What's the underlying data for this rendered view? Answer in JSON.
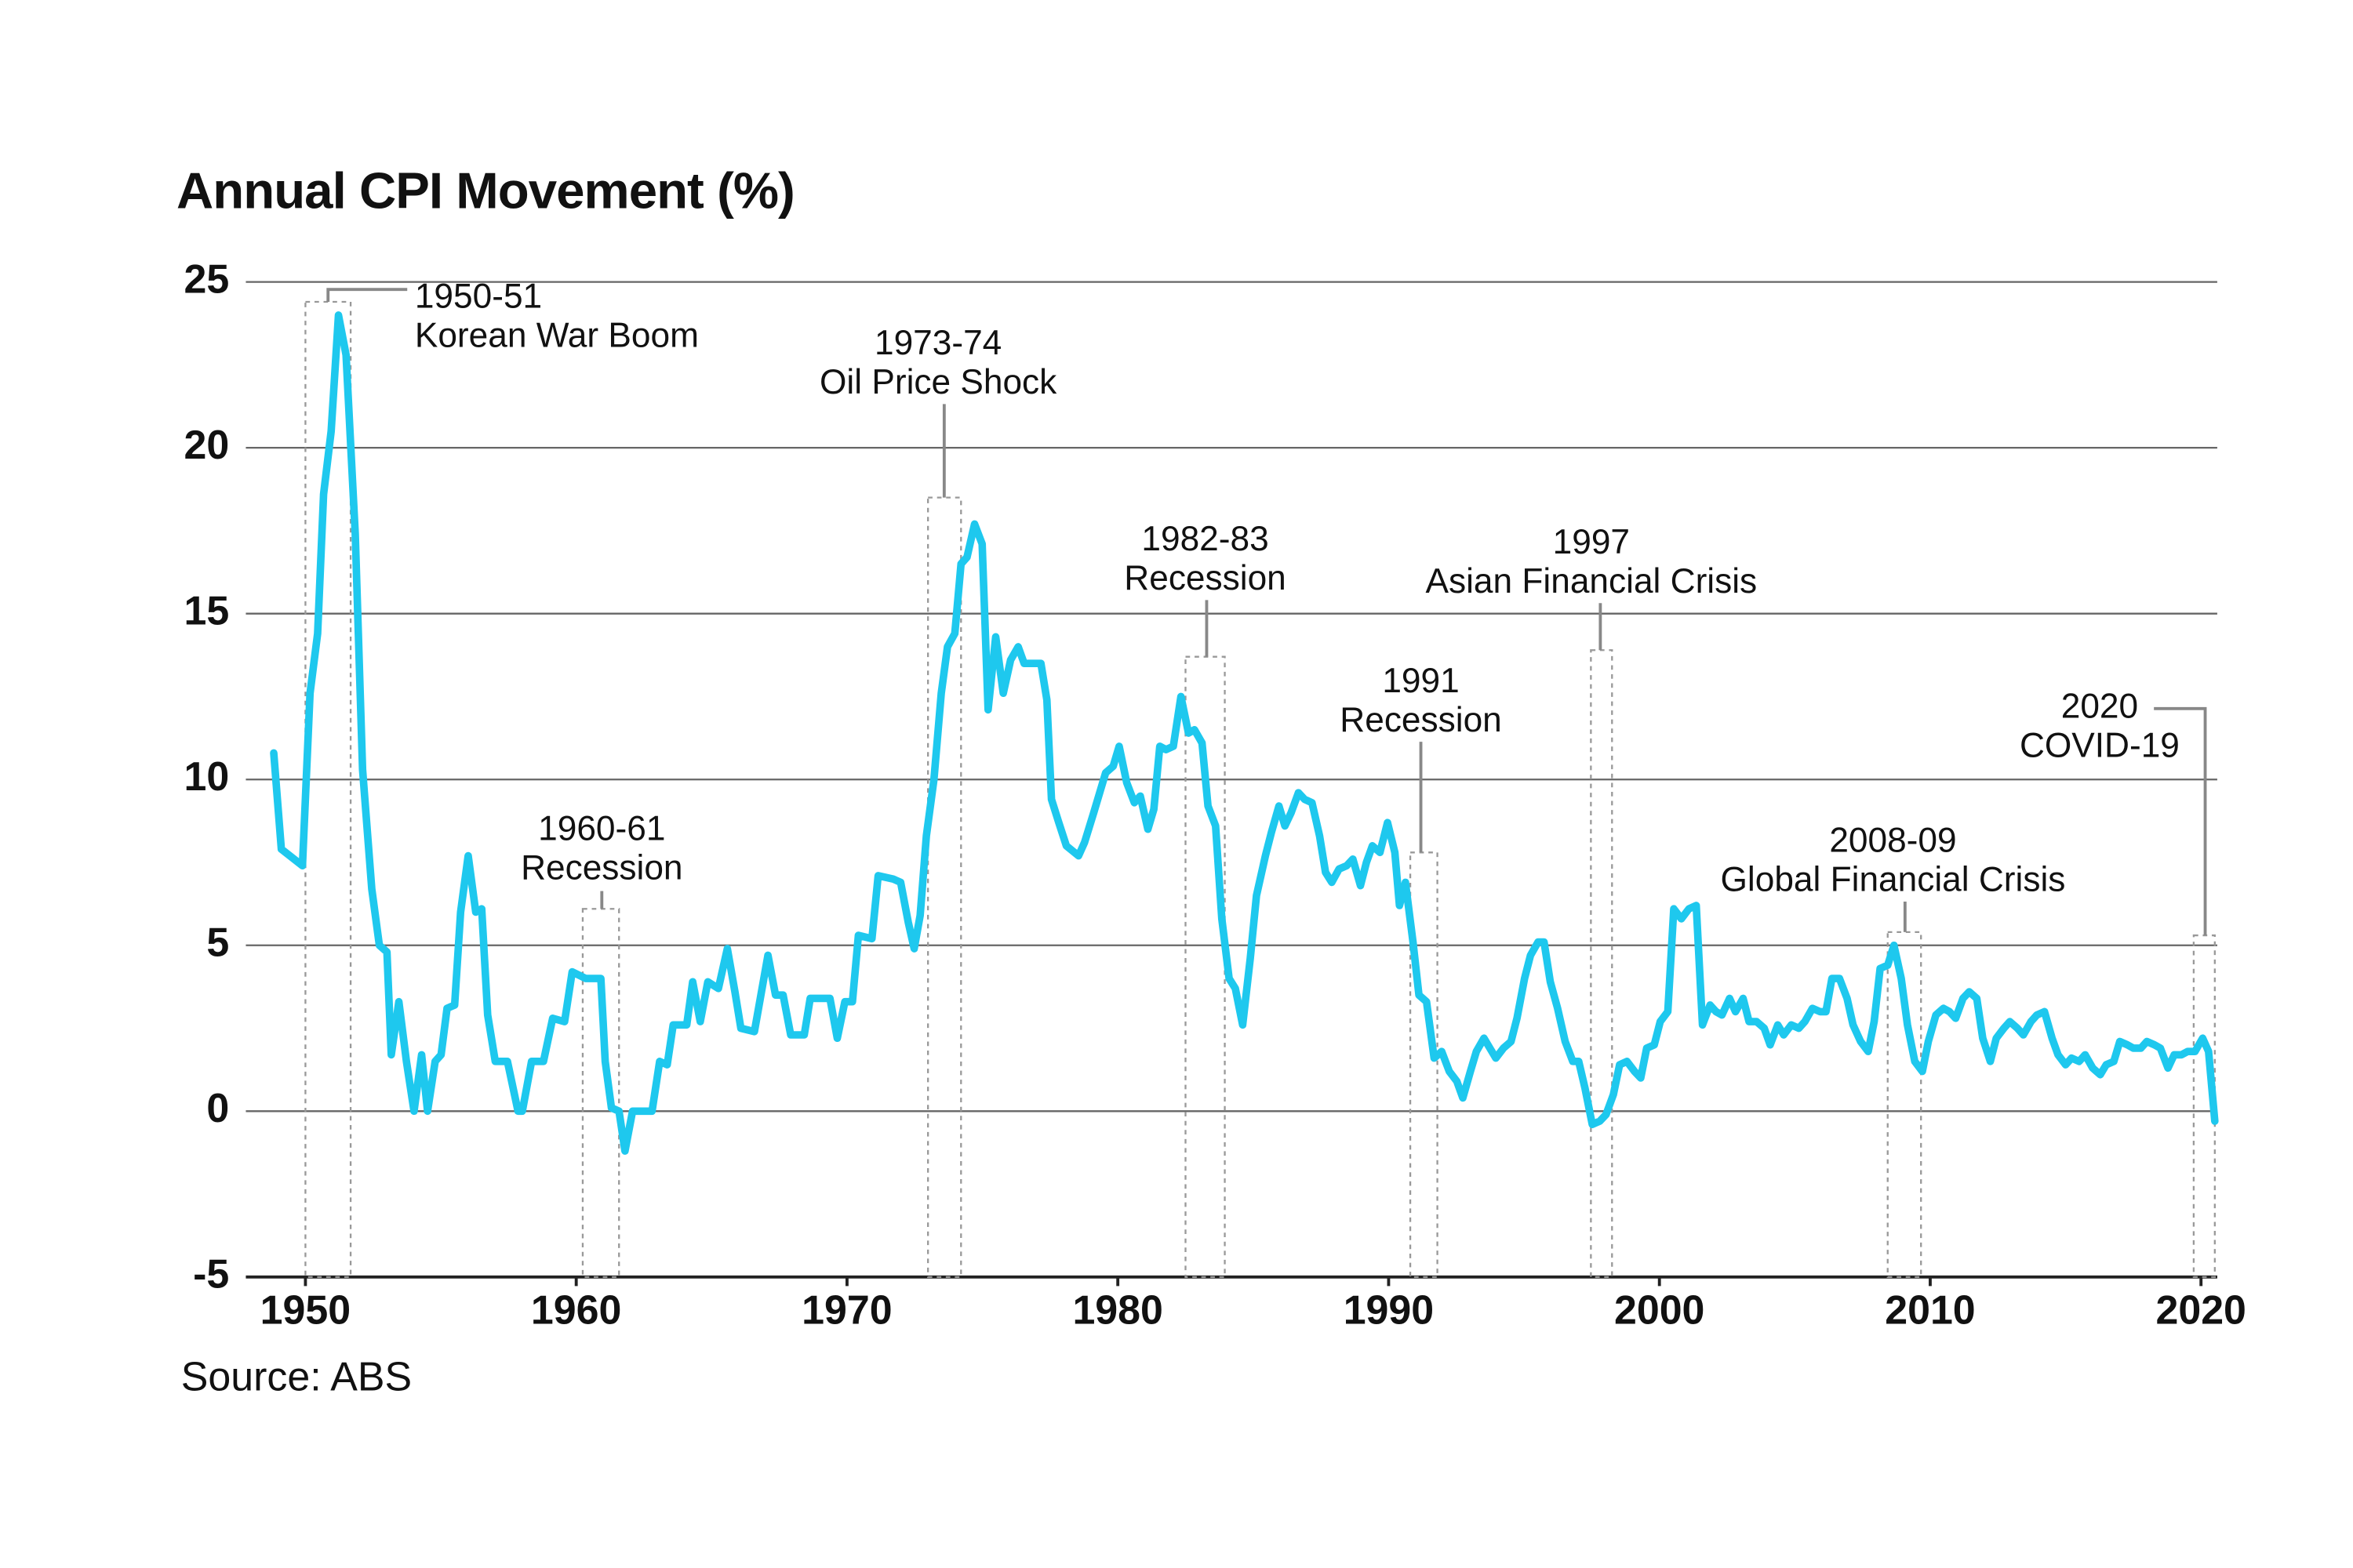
{
  "chart_data": {
    "type": "line",
    "title": "Annual CPI Movement (%)",
    "source": "Source: ABS",
    "color": "#1ec8ee",
    "grid": true,
    "xlim": [
      1947.8,
      2020.6
    ],
    "xticks": [
      1950,
      1960,
      1970,
      1980,
      1990,
      2000,
      2010,
      2020
    ],
    "ylim": [
      -5,
      25
    ],
    "yticks": [
      -5,
      0,
      5,
      10,
      15,
      20,
      25
    ],
    "x": [
      1948.83,
      1949.11,
      1949.89,
      1950.17,
      1950.45,
      1950.67,
      1950.95,
      1951.22,
      1951.5,
      1951.84,
      1952.11,
      1952.45,
      1952.73,
      1953.01,
      1953.17,
      1953.45,
      1953.73,
      1954.01,
      1954.29,
      1954.51,
      1954.79,
      1955.01,
      1955.23,
      1955.51,
      1955.73,
      1956.01,
      1956.29,
      1956.51,
      1956.73,
      1957.01,
      1957.46,
      1957.85,
      1958.01,
      1958.35,
      1958.79,
      1959.13,
      1959.57,
      1959.85,
      1960.35,
      1960.91,
      1961.07,
      1961.3,
      1961.58,
      1961.8,
      1962.08,
      1962.8,
      1963.08,
      1963.36,
      1963.58,
      1964.08,
      1964.3,
      1964.58,
      1964.86,
      1965.25,
      1965.58,
      1965.86,
      1966.08,
      1966.58,
      1967.08,
      1967.36,
      1967.64,
      1967.92,
      1968.42,
      1968.64,
      1969.37,
      1969.64,
      1969.92,
      1970.2,
      1970.42,
      1970.92,
      1971.15,
      1971.7,
      1971.98,
      1972.26,
      1972.48,
      1972.7,
      1972.93,
      1973.21,
      1973.48,
      1973.71,
      1973.98,
      1974.21,
      1974.43,
      1974.71,
      1974.99,
      1975.21,
      1975.49,
      1975.77,
      1976.04,
      1976.32,
      1976.54,
      1976.82,
      1977.16,
      1977.38,
      1977.55,
      1977.82,
      1978.1,
      1978.55,
      1978.77,
      1979.11,
      1979.33,
      1979.55,
      1979.83,
      1980.05,
      1980.33,
      1980.61,
      1980.83,
      1981.11,
      1981.33,
      1981.55,
      1981.78,
      1982.05,
      1982.33,
      1982.61,
      1982.83,
      1983.11,
      1983.33,
      1983.61,
      1983.84,
      1984.11,
      1984.34,
      1984.61,
      1984.89,
      1985.12,
      1985.45,
      1985.67,
      1985.95,
      1986.17,
      1986.4,
      1986.67,
      1986.9,
      1987.17,
      1987.45,
      1987.67,
      1987.9,
      1988.17,
      1988.45,
      1988.68,
      1988.96,
      1989.18,
      1989.4,
      1989.68,
      1989.96,
      1990.23,
      1990.4,
      1990.62,
      1990.9,
      1991.12,
      1991.4,
      1991.68,
      1991.96,
      1992.24,
      1992.52,
      1992.74,
      1993.02,
      1993.24,
      1993.52,
      1993.74,
      1993.96,
      1994.24,
      1994.52,
      1994.74,
      1995.02,
      1995.24,
      1995.52,
      1995.74,
      1995.97,
      1996.24,
      1996.52,
      1996.8,
      1997.02,
      1997.25,
      1997.52,
      1997.8,
      1998.03,
      1998.3,
      1998.53,
      1998.8,
      1999.08,
      1999.31,
      1999.53,
      1999.81,
      2000.03,
      2000.31,
      2000.53,
      2000.81,
      2001.09,
      2001.36,
      2001.59,
      2001.87,
      2002.09,
      2002.31,
      2002.59,
      2002.81,
      2003.09,
      2003.31,
      2003.59,
      2003.87,
      2004.09,
      2004.37,
      2004.59,
      2004.87,
      2005.15,
      2005.37,
      2005.65,
      2005.93,
      2006.15,
      2006.37,
      2006.65,
      2006.93,
      2007.15,
      2007.43,
      2007.71,
      2007.93,
      2008.15,
      2008.43,
      2008.66,
      2008.93,
      2009.16,
      2009.43,
      2009.71,
      2009.93,
      2010.21,
      2010.49,
      2010.71,
      2010.94,
      2011.21,
      2011.44,
      2011.72,
      2011.94,
      2012.22,
      2012.44,
      2012.72,
      2012.94,
      2013.22,
      2013.44,
      2013.72,
      2013.94,
      2014.22,
      2014.5,
      2014.72,
      2015.0,
      2015.22,
      2015.5,
      2015.72,
      2016.0,
      2016.28,
      2016.5,
      2016.78,
      2017.0,
      2017.28,
      2017.5,
      2017.78,
      2018.0,
      2018.28,
      2018.5,
      2018.78,
      2019.01,
      2019.28,
      2019.51,
      2019.78,
      2020.06,
      2020.28,
      2020.51
    ],
    "values": [
      10.8,
      7.9,
      7.4,
      12.6,
      14.4,
      18.6,
      20.5,
      24.0,
      22.8,
      17.4,
      10.3,
      6.7,
      5.0,
      4.8,
      1.7,
      3.3,
      1.5,
      0,
      1.7,
      0,
      1.5,
      1.7,
      3.1,
      3.2,
      6.0,
      7.7,
      6.0,
      6.1,
      2.9,
      1.5,
      1.5,
      0,
      0,
      1.5,
      1.5,
      2.8,
      2.7,
      4.2,
      4.0,
      4.0,
      1.5,
      0.1,
      0,
      -1.2,
      0,
      0,
      1.5,
      1.4,
      2.6,
      2.6,
      3.9,
      2.7,
      3.9,
      3.7,
      4.9,
      3.6,
      2.5,
      2.4,
      4.7,
      3.5,
      3.5,
      2.3,
      2.3,
      3.4,
      3.4,
      2.2,
      3.3,
      3.3,
      5.3,
      5.2,
      7.1,
      7.0,
      6.9,
      5.7,
      4.9,
      5.9,
      8.3,
      10.0,
      12.6,
      14.0,
      14.4,
      16.5,
      16.7,
      17.7,
      17.1,
      12.1,
      14.3,
      12.6,
      13.6,
      14.0,
      13.5,
      13.5,
      13.5,
      12.4,
      9.4,
      8.7,
      8.0,
      7.7,
      8.1,
      9.0,
      9.6,
      10.2,
      10.4,
      11.0,
      9.9,
      9.3,
      9.5,
      8.5,
      9.1,
      11.0,
      10.9,
      11.0,
      12.5,
      11.4,
      11.5,
      11.1,
      9.2,
      8.6,
      5.8,
      4.0,
      3.7,
      2.6,
      4.6,
      6.5,
      7.7,
      8.4,
      9.2,
      8.6,
      9.0,
      9.6,
      9.4,
      9.3,
      8.3,
      7.2,
      6.9,
      7.3,
      7.4,
      7.6,
      6.8,
      7.5,
      8.0,
      7.8,
      8.7,
      7.8,
      6.2,
      6.9,
      5.1,
      3.5,
      3.3,
      1.6,
      1.8,
      1.2,
      0.9,
      0.4,
      1.2,
      1.8,
      2.2,
      1.9,
      1.6,
      1.9,
      2.1,
      2.8,
      4.0,
      4.7,
      5.1,
      5.1,
      3.9,
      3.1,
      2.1,
      1.5,
      1.5,
      0.7,
      -0.4,
      -0.3,
      -0.1,
      0.5,
      1.4,
      1.5,
      1.2,
      1.0,
      1.9,
      2.0,
      2.7,
      3.0,
      6.1,
      5.8,
      6.1,
      6.2,
      2.6,
      3.2,
      3.0,
      2.9,
      3.4,
      3.0,
      3.4,
      2.7,
      2.7,
      2.5,
      2.0,
      2.6,
      2.3,
      2.6,
      2.5,
      2.7,
      3.1,
      3.0,
      3.0,
      4.0,
      4.0,
      3.4,
      2.6,
      2.1,
      1.8,
      2.7,
      4.3,
      4.4,
      5.0,
      4.0,
      2.6,
      1.5,
      1.2,
      2.1,
      2.9,
      3.1,
      3.0,
      2.8,
      3.4,
      3.6,
      3.4,
      2.2,
      1.5,
      2.2,
      2.5,
      2.7,
      2.5,
      2.3,
      2.7,
      2.9,
      3.0,
      2.2,
      1.7,
      1.4,
      1.6,
      1.5,
      1.7,
      1.3,
      1.1,
      1.4,
      1.5,
      2.1,
      2.0,
      1.9,
      1.9,
      2.1,
      2.0,
      1.9,
      1.3,
      1.7,
      1.7,
      1.8,
      1.8,
      2.2,
      1.8,
      -0.3
    ],
    "annotations": [
      {
        "lines": [
          "1950-51",
          "Korean War Boom"
        ],
        "x0": 1950.0,
        "x1": 1951.67,
        "top": 24.4
      },
      {
        "lines": [
          "1960-61",
          "Recession"
        ],
        "x0": 1960.24,
        "x1": 1961.58,
        "top": 6.1
      },
      {
        "lines": [
          "1973-74",
          "Oil Price Shock"
        ],
        "x0": 1972.99,
        "x1": 1974.21,
        "top": 18.5
      },
      {
        "lines": [
          "1982-83",
          "Recession"
        ],
        "x0": 1982.5,
        "x1": 1983.95,
        "top": 13.7
      },
      {
        "lines": [
          "1991",
          "Recession"
        ],
        "x0": 1990.8,
        "x1": 1991.8,
        "top": 7.8
      },
      {
        "lines": [
          "1997",
          "Asian Financial Crisis"
        ],
        "x0": 1997.47,
        "x1": 1998.25,
        "top": 13.9
      },
      {
        "lines": [
          "2008-09",
          "Global Financial Crisis"
        ],
        "x0": 2008.43,
        "x1": 2009.66,
        "top": 5.4
      },
      {
        "lines": [
          "2020",
          "COVID-19"
        ],
        "x0": 2019.73,
        "x1": 2020.51,
        "top": 5.3
      }
    ]
  }
}
